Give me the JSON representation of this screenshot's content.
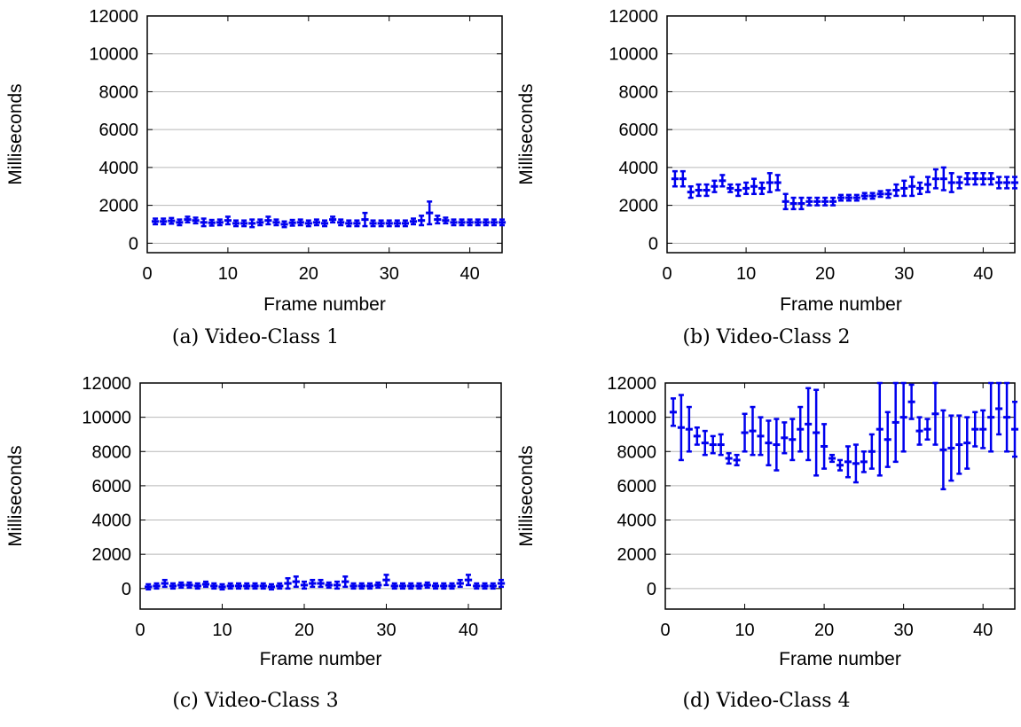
{
  "chart_data": [
    {
      "type": "scatter",
      "caption": "(a) Video-Class 1",
      "xlabel": "Frame number",
      "ylabel": "Milliseconds",
      "xlim": [
        0,
        44
      ],
      "ylim": [
        -500,
        12000
      ],
      "xticks": [
        0,
        10,
        20,
        30,
        40
      ],
      "yticks": [
        0,
        2000,
        4000,
        6000,
        8000,
        10000,
        12000
      ],
      "grid": "horizontal",
      "color": "#0000ee",
      "series": [
        {
          "x": [
            1,
            2,
            3,
            4,
            5,
            6,
            7,
            8,
            9,
            10,
            11,
            12,
            13,
            14,
            15,
            16,
            17,
            18,
            19,
            20,
            21,
            22,
            23,
            24,
            25,
            26,
            27,
            28,
            29,
            30,
            31,
            32,
            33,
            34,
            35,
            36,
            37,
            38,
            39,
            40,
            41,
            42,
            43,
            44
          ],
          "y": [
            1150,
            1150,
            1180,
            1100,
            1250,
            1200,
            1100,
            1080,
            1100,
            1200,
            1050,
            1050,
            1050,
            1100,
            1200,
            1100,
            1000,
            1080,
            1100,
            1050,
            1100,
            1050,
            1250,
            1100,
            1050,
            1050,
            1250,
            1050,
            1050,
            1050,
            1050,
            1050,
            1150,
            1200,
            1600,
            1250,
            1200,
            1100,
            1100,
            1100,
            1100,
            1100,
            1100,
            1100
          ],
          "err": [
            150,
            150,
            150,
            150,
            150,
            150,
            200,
            150,
            150,
            200,
            150,
            150,
            200,
            150,
            200,
            150,
            150,
            150,
            150,
            150,
            150,
            150,
            150,
            150,
            150,
            150,
            350,
            150,
            150,
            150,
            150,
            150,
            150,
            250,
            600,
            200,
            150,
            150,
            150,
            150,
            150,
            150,
            150,
            150
          ]
        }
      ]
    },
    {
      "type": "scatter",
      "caption": "(b) Video-Class 2",
      "xlabel": "Frame number",
      "ylabel": "Milliseconds",
      "xlim": [
        0,
        44
      ],
      "ylim": [
        -500,
        12000
      ],
      "xticks": [
        0,
        10,
        20,
        30,
        40
      ],
      "yticks": [
        0,
        2000,
        4000,
        6000,
        8000,
        10000,
        12000
      ],
      "grid": "horizontal",
      "color": "#0000ee",
      "series": [
        {
          "x": [
            1,
            2,
            3,
            4,
            5,
            6,
            7,
            8,
            9,
            10,
            11,
            12,
            13,
            14,
            15,
            16,
            17,
            18,
            19,
            20,
            21,
            22,
            23,
            24,
            25,
            26,
            27,
            28,
            29,
            30,
            31,
            32,
            33,
            34,
            35,
            36,
            37,
            38,
            39,
            40,
            41,
            42,
            43,
            44
          ],
          "y": [
            3400,
            3400,
            2700,
            2800,
            2800,
            3000,
            3300,
            2900,
            2800,
            2900,
            3000,
            2900,
            3200,
            3200,
            2200,
            2100,
            2100,
            2200,
            2200,
            2200,
            2200,
            2400,
            2400,
            2400,
            2500,
            2500,
            2600,
            2600,
            2800,
            2900,
            3000,
            2900,
            3100,
            3400,
            3400,
            3200,
            3200,
            3400,
            3400,
            3400,
            3400,
            3200,
            3200,
            3200
          ],
          "err": [
            400,
            400,
            300,
            300,
            300,
            300,
            300,
            200,
            300,
            300,
            400,
            300,
            500,
            400,
            400,
            300,
            300,
            200,
            200,
            200,
            200,
            150,
            150,
            150,
            150,
            150,
            150,
            200,
            300,
            400,
            500,
            300,
            400,
            500,
            600,
            500,
            300,
            300,
            300,
            300,
            300,
            300,
            300,
            300
          ]
        }
      ]
    },
    {
      "type": "scatter",
      "caption": "(c) Video-Class 3",
      "xlabel": "Frame number",
      "ylabel": "Milliseconds",
      "xlim": [
        0,
        44
      ],
      "ylim": [
        -1200,
        12000
      ],
      "xticks": [
        0,
        10,
        20,
        30,
        40
      ],
      "yticks": [
        0,
        2000,
        4000,
        6000,
        8000,
        10000,
        12000
      ],
      "grid": "horizontal",
      "color": "#0000ee",
      "series": [
        {
          "x": [
            1,
            2,
            3,
            4,
            5,
            6,
            7,
            8,
            9,
            10,
            11,
            12,
            13,
            14,
            15,
            16,
            17,
            18,
            19,
            20,
            21,
            22,
            23,
            24,
            25,
            26,
            27,
            28,
            29,
            30,
            31,
            32,
            33,
            34,
            35,
            36,
            37,
            38,
            39,
            40,
            41,
            42,
            43,
            44
          ],
          "y": [
            100,
            150,
            300,
            150,
            200,
            200,
            150,
            250,
            150,
            100,
            150,
            150,
            150,
            150,
            150,
            100,
            150,
            300,
            400,
            200,
            300,
            300,
            200,
            200,
            400,
            150,
            150,
            150,
            200,
            500,
            150,
            150,
            150,
            150,
            200,
            150,
            150,
            150,
            300,
            500,
            150,
            150,
            150,
            300
          ],
          "err": [
            150,
            150,
            200,
            150,
            150,
            150,
            150,
            150,
            150,
            150,
            150,
            150,
            150,
            150,
            150,
            150,
            150,
            300,
            300,
            200,
            200,
            200,
            150,
            200,
            300,
            150,
            150,
            150,
            150,
            300,
            150,
            150,
            150,
            150,
            150,
            150,
            150,
            150,
            200,
            300,
            150,
            150,
            150,
            200
          ]
        }
      ]
    },
    {
      "type": "scatter",
      "caption": "(d) Video-Class 4",
      "xlabel": "Frame number",
      "ylabel": "Milliseconds",
      "xlim": [
        0,
        44
      ],
      "ylim": [
        -1200,
        12000
      ],
      "xticks": [
        0,
        10,
        20,
        30,
        40
      ],
      "yticks": [
        0,
        2000,
        4000,
        6000,
        8000,
        10000,
        12000
      ],
      "grid": "horizontal",
      "color": "#0000ee",
      "series": [
        {
          "x": [
            1,
            2,
            3,
            4,
            5,
            6,
            7,
            8,
            9,
            10,
            11,
            12,
            13,
            14,
            15,
            16,
            17,
            18,
            19,
            20,
            21,
            22,
            23,
            24,
            25,
            26,
            27,
            28,
            29,
            30,
            31,
            32,
            33,
            34,
            35,
            36,
            37,
            38,
            39,
            40,
            41,
            42,
            43,
            44
          ],
          "y": [
            10300,
            9400,
            9300,
            8900,
            8500,
            8400,
            8400,
            7600,
            7500,
            9100,
            9200,
            8900,
            8500,
            8400,
            8800,
            8700,
            9300,
            9600,
            9100,
            8300,
            7600,
            7200,
            7400,
            7300,
            7400,
            8000,
            9300,
            8700,
            9700,
            10000,
            10900,
            9200,
            9300,
            10200,
            8100,
            8200,
            8400,
            8500,
            9300,
            9300,
            10000,
            10500,
            10000,
            9300
          ],
          "err": [
            800,
            1900,
            1300,
            500,
            700,
            500,
            600,
            300,
            300,
            1100,
            1400,
            1100,
            1300,
            1500,
            900,
            1200,
            1300,
            2100,
            2500,
            1300,
            200,
            300,
            900,
            1100,
            600,
            1000,
            2700,
            1600,
            2300,
            2000,
            1000,
            800,
            600,
            1800,
            2300,
            1900,
            1700,
            1500,
            1000,
            1100,
            2000,
            1500,
            2000,
            1600
          ]
        }
      ]
    }
  ]
}
